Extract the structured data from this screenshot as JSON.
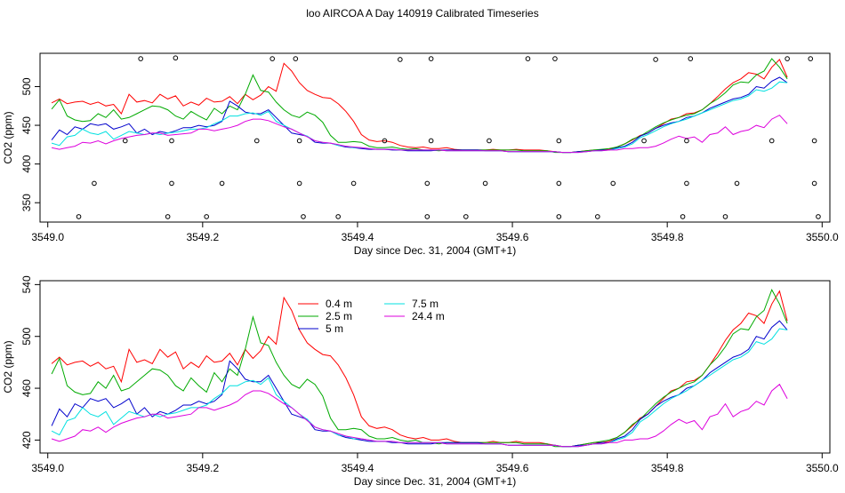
{
  "title": "loo AIRCOA A  Day 140919  Calibrated Timeseries",
  "chart_data": [
    {
      "type": "scatter+line",
      "ylabel": "CO2 (ppm)",
      "xlabel": "Day since Dec. 31, 2004 (GMT+1)",
      "xlim": [
        3548.99,
        3550.01
      ],
      "ylim": [
        325,
        543
      ],
      "xticks": [
        3549.0,
        3549.2,
        3549.4,
        3549.6,
        3549.8,
        3550.0
      ],
      "xtick_labels": [
        "3549.0",
        "3549.2",
        "3549.4",
        "3549.6",
        "3549.8",
        "3550.0"
      ],
      "yticks": [
        350,
        400,
        450,
        500
      ],
      "ytick_labels": [
        "350",
        "400",
        "450",
        "500"
      ],
      "grid": false,
      "reference_points": {
        "x": [
          3549.04,
          3549.06,
          3549.1,
          3549.12,
          3549.155,
          3549.16,
          3549.16,
          3549.165,
          3549.205,
          3549.225,
          3549.27,
          3549.29,
          3549.32,
          3549.325,
          3549.325,
          3549.33,
          3549.375,
          3549.395,
          3549.435,
          3549.455,
          3549.49,
          3549.49,
          3549.495,
          3549.495,
          3549.54,
          3549.565,
          3549.57,
          3549.62,
          3549.655,
          3549.66,
          3549.66,
          3549.66,
          3549.71,
          3549.73,
          3549.77,
          3549.785,
          3549.82,
          3549.825,
          3549.825,
          3549.83,
          3549.875,
          3549.89,
          3549.935,
          3549.955,
          3549.985,
          3549.99,
          3549.99,
          3549.995
        ],
        "y": [
          332,
          375,
          430,
          536,
          332,
          375,
          430,
          537,
          332,
          375,
          430,
          536,
          536,
          430,
          375,
          332,
          332,
          375,
          430,
          535,
          332,
          375,
          430,
          536,
          332,
          375,
          430,
          536,
          536,
          430,
          375,
          332,
          332,
          375,
          430,
          535,
          332,
          430,
          375,
          536,
          332,
          375,
          430,
          536,
          536,
          430,
          375,
          332
        ]
      },
      "series": []
    },
    {
      "type": "line",
      "ylabel": "CO2 (ppm)",
      "xlabel": "Day since Dec. 31, 2004 (GMT+1)",
      "xlim": [
        3548.99,
        3550.01
      ],
      "ylim": [
        410,
        543
      ],
      "xticks": [
        3549.0,
        3549.2,
        3549.4,
        3549.6,
        3549.8,
        3550.0
      ],
      "xtick_labels": [
        "3549.0",
        "3549.2",
        "3549.4",
        "3549.6",
        "3549.8",
        "3550.0"
      ],
      "yticks": [
        420,
        460,
        500,
        540
      ],
      "ytick_labels": [
        "420",
        "460",
        "500",
        "540"
      ],
      "grid": false,
      "legend": {
        "position": "top-left",
        "entries": [
          {
            "label": "0.4 m",
            "color": "#ff0000"
          },
          {
            "label": "2.5 m",
            "color": "#00aa00"
          },
          {
            "label": "5 m",
            "color": "#0000cc"
          },
          {
            "label": "7.5 m",
            "color": "#00e0e0"
          },
          {
            "label": "24.4 m",
            "color": "#dd00dd"
          }
        ]
      },
      "series": []
    }
  ],
  "series_data": {
    "x_start": 3549.005,
    "x_step": 0.01,
    "series": [
      {
        "name": "0.4 m",
        "color": "#ff0000",
        "values": [
          479,
          484,
          478,
          480,
          481,
          477,
          480,
          475,
          477,
          465,
          490,
          480,
          482,
          479,
          490,
          484,
          488,
          475,
          480,
          476,
          485,
          480,
          481,
          487,
          478,
          490,
          483,
          489,
          500,
          494,
          530,
          520,
          505,
          495,
          490,
          486,
          485,
          478,
          468,
          455,
          438,
          431,
          429,
          430,
          428,
          424,
          422,
          421,
          422,
          420,
          420,
          421,
          419,
          418,
          418,
          418,
          418,
          419,
          418,
          418,
          419,
          418,
          418,
          418,
          417,
          416,
          415,
          415,
          416,
          417,
          418,
          418,
          419,
          422,
          426,
          431,
          437,
          440,
          446,
          452,
          458,
          460,
          465,
          466,
          470,
          478,
          487,
          497,
          505,
          510,
          518,
          516,
          510,
          525,
          535,
          512
        ]
      },
      {
        "name": "2.5 m",
        "color": "#00aa00",
        "values": [
          471,
          483,
          462,
          457,
          455,
          456,
          465,
          460,
          470,
          458,
          460,
          465,
          470,
          475,
          474,
          470,
          462,
          458,
          468,
          462,
          457,
          472,
          465,
          475,
          470,
          490,
          515,
          495,
          493,
          480,
          470,
          463,
          460,
          467,
          463,
          454,
          437,
          428,
          428,
          429,
          428,
          423,
          421,
          421,
          422,
          420,
          419,
          420,
          418,
          418,
          417,
          418,
          418,
          418,
          418,
          418,
          418,
          418,
          418,
          418,
          418,
          417,
          417,
          417,
          417,
          415,
          415,
          415,
          416,
          417,
          418,
          419,
          420,
          422,
          426,
          432,
          436,
          442,
          448,
          453,
          457,
          460,
          463,
          465,
          470,
          478,
          484,
          492,
          502,
          506,
          505,
          515,
          520,
          536,
          525,
          510
        ]
      },
      {
        "name": "5 m",
        "color": "#0000cc",
        "values": [
          431,
          444,
          438,
          448,
          445,
          452,
          450,
          452,
          445,
          448,
          452,
          440,
          445,
          438,
          442,
          440,
          443,
          447,
          447,
          450,
          448,
          450,
          455,
          481,
          475,
          467,
          465,
          465,
          470,
          460,
          450,
          440,
          438,
          436,
          428,
          427,
          427,
          424,
          422,
          421,
          420,
          419,
          419,
          419,
          418,
          418,
          417,
          417,
          417,
          417,
          418,
          418,
          418,
          418,
          418,
          418,
          417,
          417,
          417,
          416,
          416,
          416,
          416,
          416,
          416,
          416,
          415,
          415,
          416,
          416,
          417,
          418,
          418,
          421,
          423,
          428,
          436,
          440,
          446,
          450,
          453,
          455,
          460,
          462,
          466,
          472,
          476,
          480,
          484,
          486,
          490,
          500,
          498,
          507,
          512,
          505
        ]
      },
      {
        "name": "7.5 m",
        "color": "#00e0e0",
        "values": [
          427,
          424,
          435,
          437,
          445,
          440,
          438,
          442,
          432,
          437,
          442,
          440,
          438,
          440,
          438,
          440,
          441,
          443,
          445,
          445,
          447,
          452,
          456,
          462,
          462,
          465,
          466,
          463,
          468,
          455,
          450,
          445,
          440,
          436,
          430,
          428,
          427,
          424,
          423,
          421,
          421,
          420,
          419,
          419,
          419,
          418,
          418,
          418,
          418,
          418,
          418,
          417,
          417,
          417,
          417,
          417,
          417,
          417,
          417,
          416,
          416,
          416,
          416,
          416,
          416,
          416,
          415,
          415,
          415,
          416,
          417,
          417,
          418,
          420,
          422,
          426,
          434,
          438,
          443,
          448,
          452,
          455,
          458,
          462,
          466,
          470,
          474,
          478,
          482,
          484,
          488,
          496,
          494,
          498,
          506,
          505
        ]
      },
      {
        "name": "24.4 m",
        "color": "#dd00dd",
        "values": [
          421,
          419,
          421,
          423,
          428,
          427,
          430,
          426,
          430,
          433,
          435,
          437,
          438,
          440,
          440,
          437,
          438,
          439,
          440,
          445,
          445,
          443,
          445,
          447,
          450,
          455,
          458,
          458,
          456,
          452,
          448,
          445,
          440,
          435,
          430,
          428,
          427,
          425,
          423,
          422,
          421,
          420,
          419,
          419,
          419,
          418,
          418,
          418,
          418,
          418,
          418,
          417,
          417,
          417,
          417,
          417,
          417,
          417,
          417,
          416,
          416,
          416,
          416,
          416,
          416,
          416,
          415,
          415,
          415,
          416,
          417,
          417,
          418,
          418,
          420,
          420,
          421,
          421,
          423,
          427,
          432,
          436,
          433,
          435,
          428,
          438,
          440,
          448,
          438,
          442,
          444,
          450,
          447,
          458,
          463,
          452
        ]
      }
    ]
  }
}
